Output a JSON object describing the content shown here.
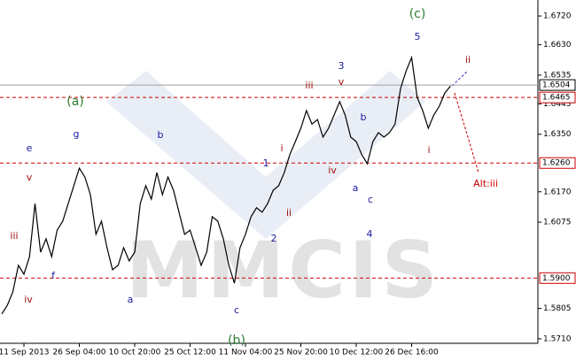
{
  "chart_data": {
    "type": "line",
    "color": "#000000",
    "watermark": "MMCIS",
    "categories": [
      null,
      null,
      null,
      null,
      "11 Sep 2013",
      null,
      null,
      null,
      null,
      null,
      null,
      null,
      null,
      null,
      "26 Sep 04:00",
      null,
      null,
      null,
      null,
      null,
      null,
      null,
      null,
      null,
      "10 Oct 20:00",
      null,
      null,
      null,
      null,
      null,
      null,
      null,
      null,
      null,
      "25 Oct 12:00",
      null,
      null,
      null,
      null,
      null,
      null,
      null,
      null,
      null,
      "11 Nov 04:00",
      null,
      null,
      null,
      null,
      null,
      null,
      null,
      null,
      null,
      "25 Nov 20:00",
      null,
      null,
      null,
      null,
      null,
      null,
      null,
      null,
      null,
      "10 Dec 12:00",
      null,
      null,
      null,
      null,
      null,
      null,
      null,
      null,
      null,
      "26 Dec 16:00",
      null,
      null,
      null,
      null,
      null,
      null,
      null
    ],
    "values": [
      1.5788,
      1.5815,
      1.5857,
      1.594,
      1.5912,
      1.5967,
      1.6133,
      1.5981,
      1.6023,
      1.5967,
      1.605,
      1.6078,
      1.6133,
      1.6189,
      1.6244,
      1.6216,
      1.6161,
      1.6037,
      1.6078,
      1.5995,
      1.5926,
      1.594,
      1.5995,
      1.5954,
      1.5981,
      1.6133,
      1.6189,
      1.6147,
      1.623,
      1.6161,
      1.6216,
      1.6175,
      1.6106,
      1.6037,
      1.605,
      1.5995,
      1.594,
      1.5981,
      1.6092,
      1.6078,
      1.6023,
      1.594,
      1.5884,
      1.5995,
      1.6037,
      1.6092,
      1.612,
      1.6106,
      1.6133,
      1.6175,
      1.6189,
      1.623,
      1.6286,
      1.6327,
      1.6369,
      1.6424,
      1.6382,
      1.6396,
      1.6341,
      1.6369,
      1.641,
      1.6452,
      1.641,
      1.6341,
      1.6327,
      1.6286,
      1.6258,
      1.6327,
      1.6355,
      1.6341,
      1.6355,
      1.6382,
      1.6493,
      1.6548,
      1.659,
      1.6465,
      1.6424,
      1.6369,
      1.641,
      1.6438,
      1.6479,
      1.6501
    ],
    "ylim": [
      1.5696,
      1.677
    ],
    "yticks": [
      {
        "value": 1.571,
        "label": "1.5710"
      },
      1.5805,
      1.6075,
      {
        "value": 1.617,
        "label": "1.6170"
      },
      {
        "value": 1.635,
        "label": "1.6350"
      },
      1.6445,
      1.6535,
      {
        "value": 1.663,
        "label": "1.6630"
      },
      {
        "value": 1.672,
        "label": "1.6720"
      }
    ],
    "levels": [
      1.6465,
      {
        "value": 1.626,
        "label": "1.6260"
      },
      {
        "value": 1.59,
        "label": "1.5900"
      }
    ],
    "level_color": "#cc0000",
    "current_price": 1.6504,
    "annotations": [
      {
        "text": "(c)",
        "color": "#2e7d32"
      },
      {
        "text": "5",
        "color": "#1a1aa0"
      },
      {
        "text": "ii",
        "color": "#a01010"
      },
      {
        "text": "3",
        "color": "#1a1aa0"
      },
      {
        "text": "iii",
        "color": "#a01010"
      },
      {
        "text": "v",
        "color": "#a01010"
      },
      {
        "text": "(a)",
        "color": "#2e7d32"
      },
      {
        "text": "b",
        "color": "#1a1aa0"
      },
      {
        "text": "g",
        "color": "#1a1aa0"
      },
      {
        "text": "b",
        "color": "#1a1aa0"
      },
      {
        "text": "e",
        "color": "#1a1aa0"
      },
      {
        "text": "i",
        "color": "#a01010"
      },
      {
        "text": "i",
        "color": "#a01010"
      },
      {
        "text": "1",
        "color": "#1a1aa0"
      },
      {
        "text": "iv",
        "color": "#a01010"
      },
      {
        "text": "v",
        "color": "#a01010"
      },
      {
        "text": "Alt:iii",
        "color": "#cc0000"
      },
      {
        "text": "a",
        "color": "#1a1aa0"
      },
      {
        "text": "c",
        "color": "#1a1aa0"
      },
      {
        "text": "ii",
        "color": "#a01010"
      },
      {
        "text": "iii",
        "color": "#a01010"
      },
      {
        "text": "4",
        "color": "#1a1aa0"
      },
      {
        "text": "2",
        "color": "#1a1aa0"
      },
      {
        "text": "f",
        "color": "#1a1aa0"
      },
      {
        "text": "iv",
        "color": "#a01010"
      },
      {
        "text": "a",
        "color": "#1a1aa0"
      },
      {
        "text": "c",
        "color": "#1a1aa0"
      },
      {
        "text": "(b)",
        "color": "#2e7d32"
      }
    ]
  }
}
